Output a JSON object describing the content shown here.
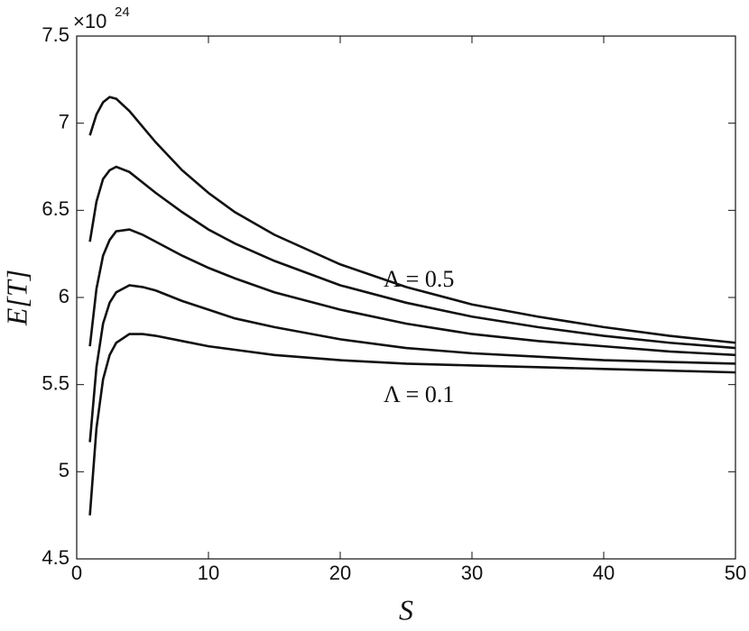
{
  "chart_data": {
    "type": "line",
    "xlabel": "S",
    "ylabel": "E[T]",
    "y_multiplier": "×10",
    "y_multiplier_exponent": "24",
    "x": [
      1,
      1.5,
      2,
      2.5,
      3,
      4,
      5,
      6,
      8,
      10,
      12,
      15,
      20,
      25,
      30,
      35,
      40,
      45,
      50
    ],
    "series": [
      {
        "color": "#111111",
        "values": [
          6.93,
          7.05,
          7.12,
          7.15,
          7.14,
          7.07,
          6.98,
          6.89,
          6.73,
          6.6,
          6.49,
          6.36,
          6.19,
          6.06,
          5.96,
          5.89,
          5.83,
          5.78,
          5.74
        ]
      },
      {
        "color": "#111111",
        "values": [
          6.32,
          6.55,
          6.68,
          6.73,
          6.75,
          6.72,
          6.66,
          6.6,
          6.49,
          6.39,
          6.31,
          6.21,
          6.07,
          5.97,
          5.89,
          5.83,
          5.78,
          5.74,
          5.71
        ]
      },
      {
        "color": "#111111",
        "values": [
          5.72,
          6.05,
          6.24,
          6.33,
          6.38,
          6.39,
          6.36,
          6.32,
          6.24,
          6.17,
          6.11,
          6.03,
          5.93,
          5.85,
          5.79,
          5.75,
          5.72,
          5.69,
          5.67
        ]
      },
      {
        "color": "#111111",
        "values": [
          5.17,
          5.6,
          5.85,
          5.97,
          6.03,
          6.07,
          6.06,
          6.04,
          5.98,
          5.93,
          5.88,
          5.83,
          5.76,
          5.71,
          5.68,
          5.66,
          5.64,
          5.63,
          5.62
        ]
      },
      {
        "color": "#111111",
        "values": [
          4.75,
          5.25,
          5.53,
          5.67,
          5.74,
          5.79,
          5.79,
          5.78,
          5.75,
          5.72,
          5.7,
          5.67,
          5.64,
          5.62,
          5.61,
          5.6,
          5.59,
          5.58,
          5.57
        ]
      }
    ],
    "annotations": [
      "Λ  = 0.5",
      "Λ  = 0.1"
    ],
    "xlim": [
      0,
      50
    ],
    "xticks": [
      0,
      10,
      20,
      30,
      40,
      50
    ],
    "ylim": [
      4.5,
      7.5
    ],
    "yticks": [
      4.5,
      5,
      5.5,
      6,
      6.5,
      7,
      7.5
    ],
    "grid": false
  }
}
